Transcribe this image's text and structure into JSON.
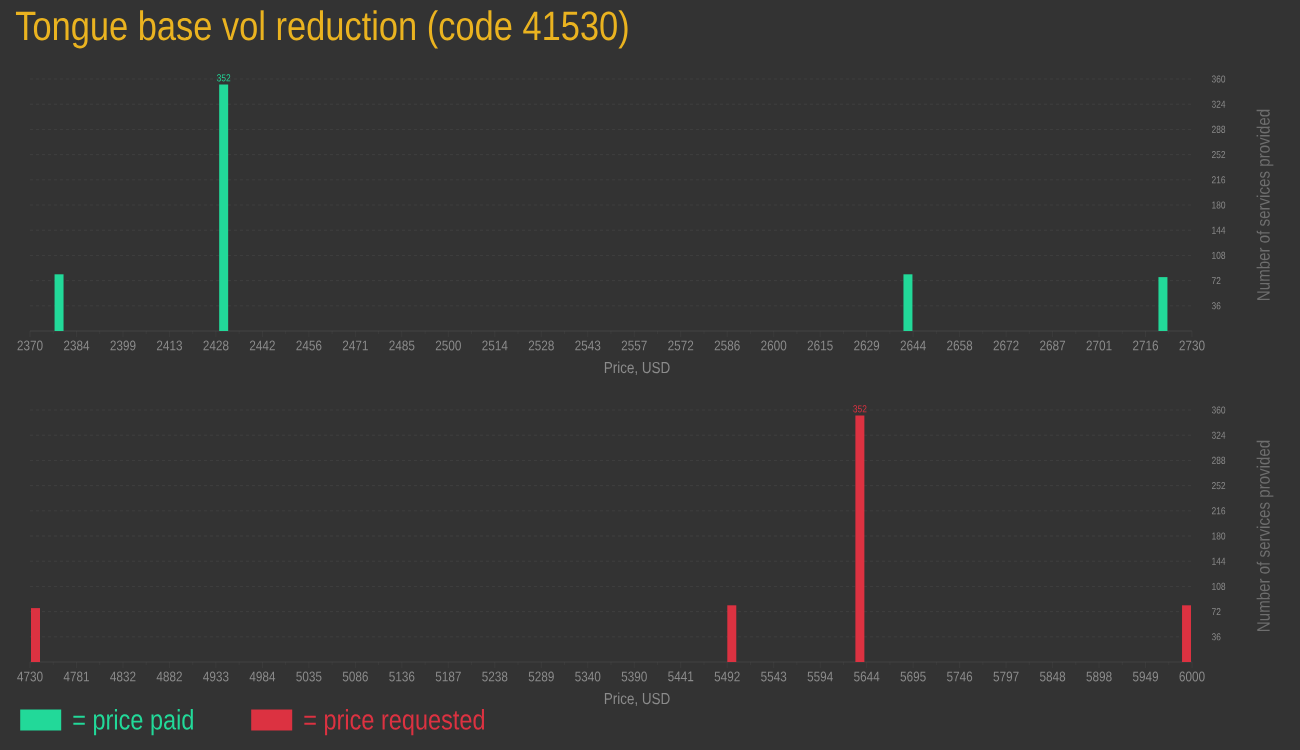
{
  "chart_data": [
    {
      "type": "bar",
      "title": "Tongue base vol reduction (code 41530)",
      "xlabel": "Price, USD",
      "ylabel": "Number of services provided",
      "x": [
        2379,
        2430,
        2642,
        2721
      ],
      "series": [
        {
          "name": "= price paid",
          "color": "#22d999",
          "values": [
            81,
            352,
            81,
            77
          ],
          "value_labels": [
            null,
            "352",
            null,
            null
          ]
        }
      ],
      "xlim": [
        2370,
        2730
      ],
      "xticks": [
        2370,
        {
          "value": 2384.4,
          "label": "2384"
        },
        {
          "value": 2398.8,
          "label": "2399"
        },
        {
          "value": 2413.2,
          "label": "2413"
        },
        {
          "value": 2427.6,
          "label": "2428"
        },
        2442,
        {
          "value": 2456.4,
          "label": "2456"
        },
        {
          "value": 2470.8,
          "label": "2471"
        },
        {
          "value": 2485.2,
          "label": "2485"
        },
        {
          "value": 2499.6,
          "label": "2500"
        },
        2514,
        {
          "value": 2528.4,
          "label": "2528"
        },
        {
          "value": 2542.8,
          "label": "2543"
        },
        {
          "value": 2557.2,
          "label": "2557"
        },
        {
          "value": 2571.6,
          "label": "2572"
        },
        2586,
        {
          "value": 2600.4,
          "label": "2600"
        },
        {
          "value": 2614.8,
          "label": "2615"
        },
        {
          "value": 2629.2,
          "label": "2629"
        },
        {
          "value": 2643.6,
          "label": "2644"
        },
        2658,
        {
          "value": 2672.4,
          "label": "2672"
        },
        {
          "value": 2686.8,
          "label": "2687"
        },
        {
          "value": 2701.2,
          "label": "2701"
        },
        {
          "value": 2715.6,
          "label": "2716"
        },
        2730
      ],
      "ylim": [
        0,
        360
      ],
      "yticks": [
        36,
        72,
        108,
        144,
        180,
        216,
        252,
        288,
        324,
        360
      ],
      "grid": "y",
      "legend": "bottom"
    },
    {
      "type": "bar",
      "xlabel": "Price, USD",
      "ylabel": "Number of services provided",
      "x": [
        4736,
        5497,
        5637,
        5994
      ],
      "series": [
        {
          "name": "= price requested",
          "color": "#dc3241",
          "values": [
            77,
            81,
            352,
            81
          ],
          "value_labels": [
            null,
            null,
            "352",
            null
          ]
        }
      ],
      "xlim": [
        4730,
        6000
      ],
      "xticks": [
        4730,
        {
          "value": 4780.8,
          "label": "4781"
        },
        {
          "value": 4831.6,
          "label": "4832"
        },
        {
          "value": 4882.4,
          "label": "4882"
        },
        {
          "value": 4933.2,
          "label": "4933"
        },
        4984,
        {
          "value": 5034.8,
          "label": "5035"
        },
        {
          "value": 5085.6,
          "label": "5086"
        },
        {
          "value": 5136.4,
          "label": "5136"
        },
        {
          "value": 5187.2,
          "label": "5187"
        },
        5238,
        {
          "value": 5288.8,
          "label": "5289"
        },
        {
          "value": 5339.6,
          "label": "5340"
        },
        {
          "value": 5390.4,
          "label": "5390"
        },
        {
          "value": 5441.2,
          "label": "5441"
        },
        5492,
        {
          "value": 5542.8,
          "label": "5543"
        },
        {
          "value": 5593.6,
          "label": "5594"
        },
        {
          "value": 5644.4,
          "label": "5644"
        },
        {
          "value": 5695.2,
          "label": "5695"
        },
        5746,
        {
          "value": 5796.8,
          "label": "5797"
        },
        {
          "value": 5847.6,
          "label": "5848"
        },
        {
          "value": 5898.4,
          "label": "5898"
        },
        {
          "value": 5949.2,
          "label": "5949"
        },
        6000
      ],
      "ylim": [
        0,
        360
      ],
      "yticks": [
        36,
        72,
        108,
        144,
        180,
        216,
        252,
        288,
        324,
        360
      ],
      "grid": "y",
      "legend": "bottom"
    }
  ]
}
